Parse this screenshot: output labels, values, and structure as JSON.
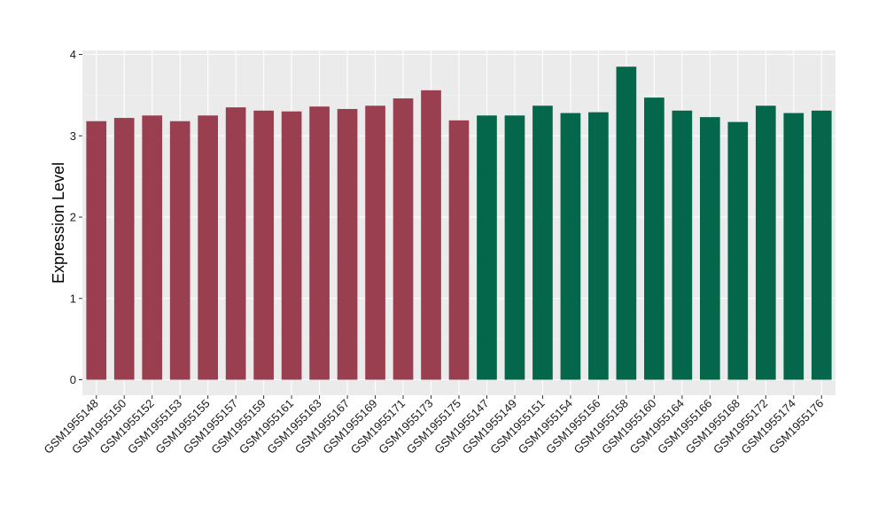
{
  "chart_data": {
    "type": "bar",
    "title": "",
    "xlabel": "",
    "ylabel": "Expression Level",
    "ylim": [
      0,
      4.05
    ],
    "yticks": [
      0,
      1,
      2,
      3,
      4
    ],
    "grid": true,
    "background": "#ebebeb",
    "categories": [
      "GSM1955148",
      "GSM1955150",
      "GSM1955152",
      "GSM1955153",
      "GSM1955155",
      "GSM1955157",
      "GSM1955159",
      "GSM1955161",
      "GSM1955163",
      "GSM1955167",
      "GSM1955169",
      "GSM1955171",
      "GSM1955173",
      "GSM1955175",
      "GSM1955147",
      "GSM1955149",
      "GSM1955151",
      "GSM1955154",
      "GSM1955156",
      "GSM1955158",
      "GSM1955160",
      "GSM1955164",
      "GSM1955166",
      "GSM1955168",
      "GSM1955172",
      "GSM1955174",
      "GSM1955176"
    ],
    "values": [
      3.18,
      3.22,
      3.25,
      3.18,
      3.25,
      3.35,
      3.31,
      3.3,
      3.36,
      3.33,
      3.37,
      3.46,
      3.56,
      3.19,
      3.25,
      3.25,
      3.37,
      3.28,
      3.29,
      3.85,
      3.47,
      3.31,
      3.23,
      3.17,
      3.37,
      3.28,
      3.31
    ],
    "groups": [
      "a",
      "a",
      "a",
      "a",
      "a",
      "a",
      "a",
      "a",
      "a",
      "a",
      "a",
      "a",
      "a",
      "a",
      "b",
      "b",
      "b",
      "b",
      "b",
      "b",
      "b",
      "b",
      "b",
      "b",
      "b",
      "b",
      "b"
    ],
    "colors": {
      "a": "#9a3f4f",
      "b": "#04664a"
    }
  }
}
